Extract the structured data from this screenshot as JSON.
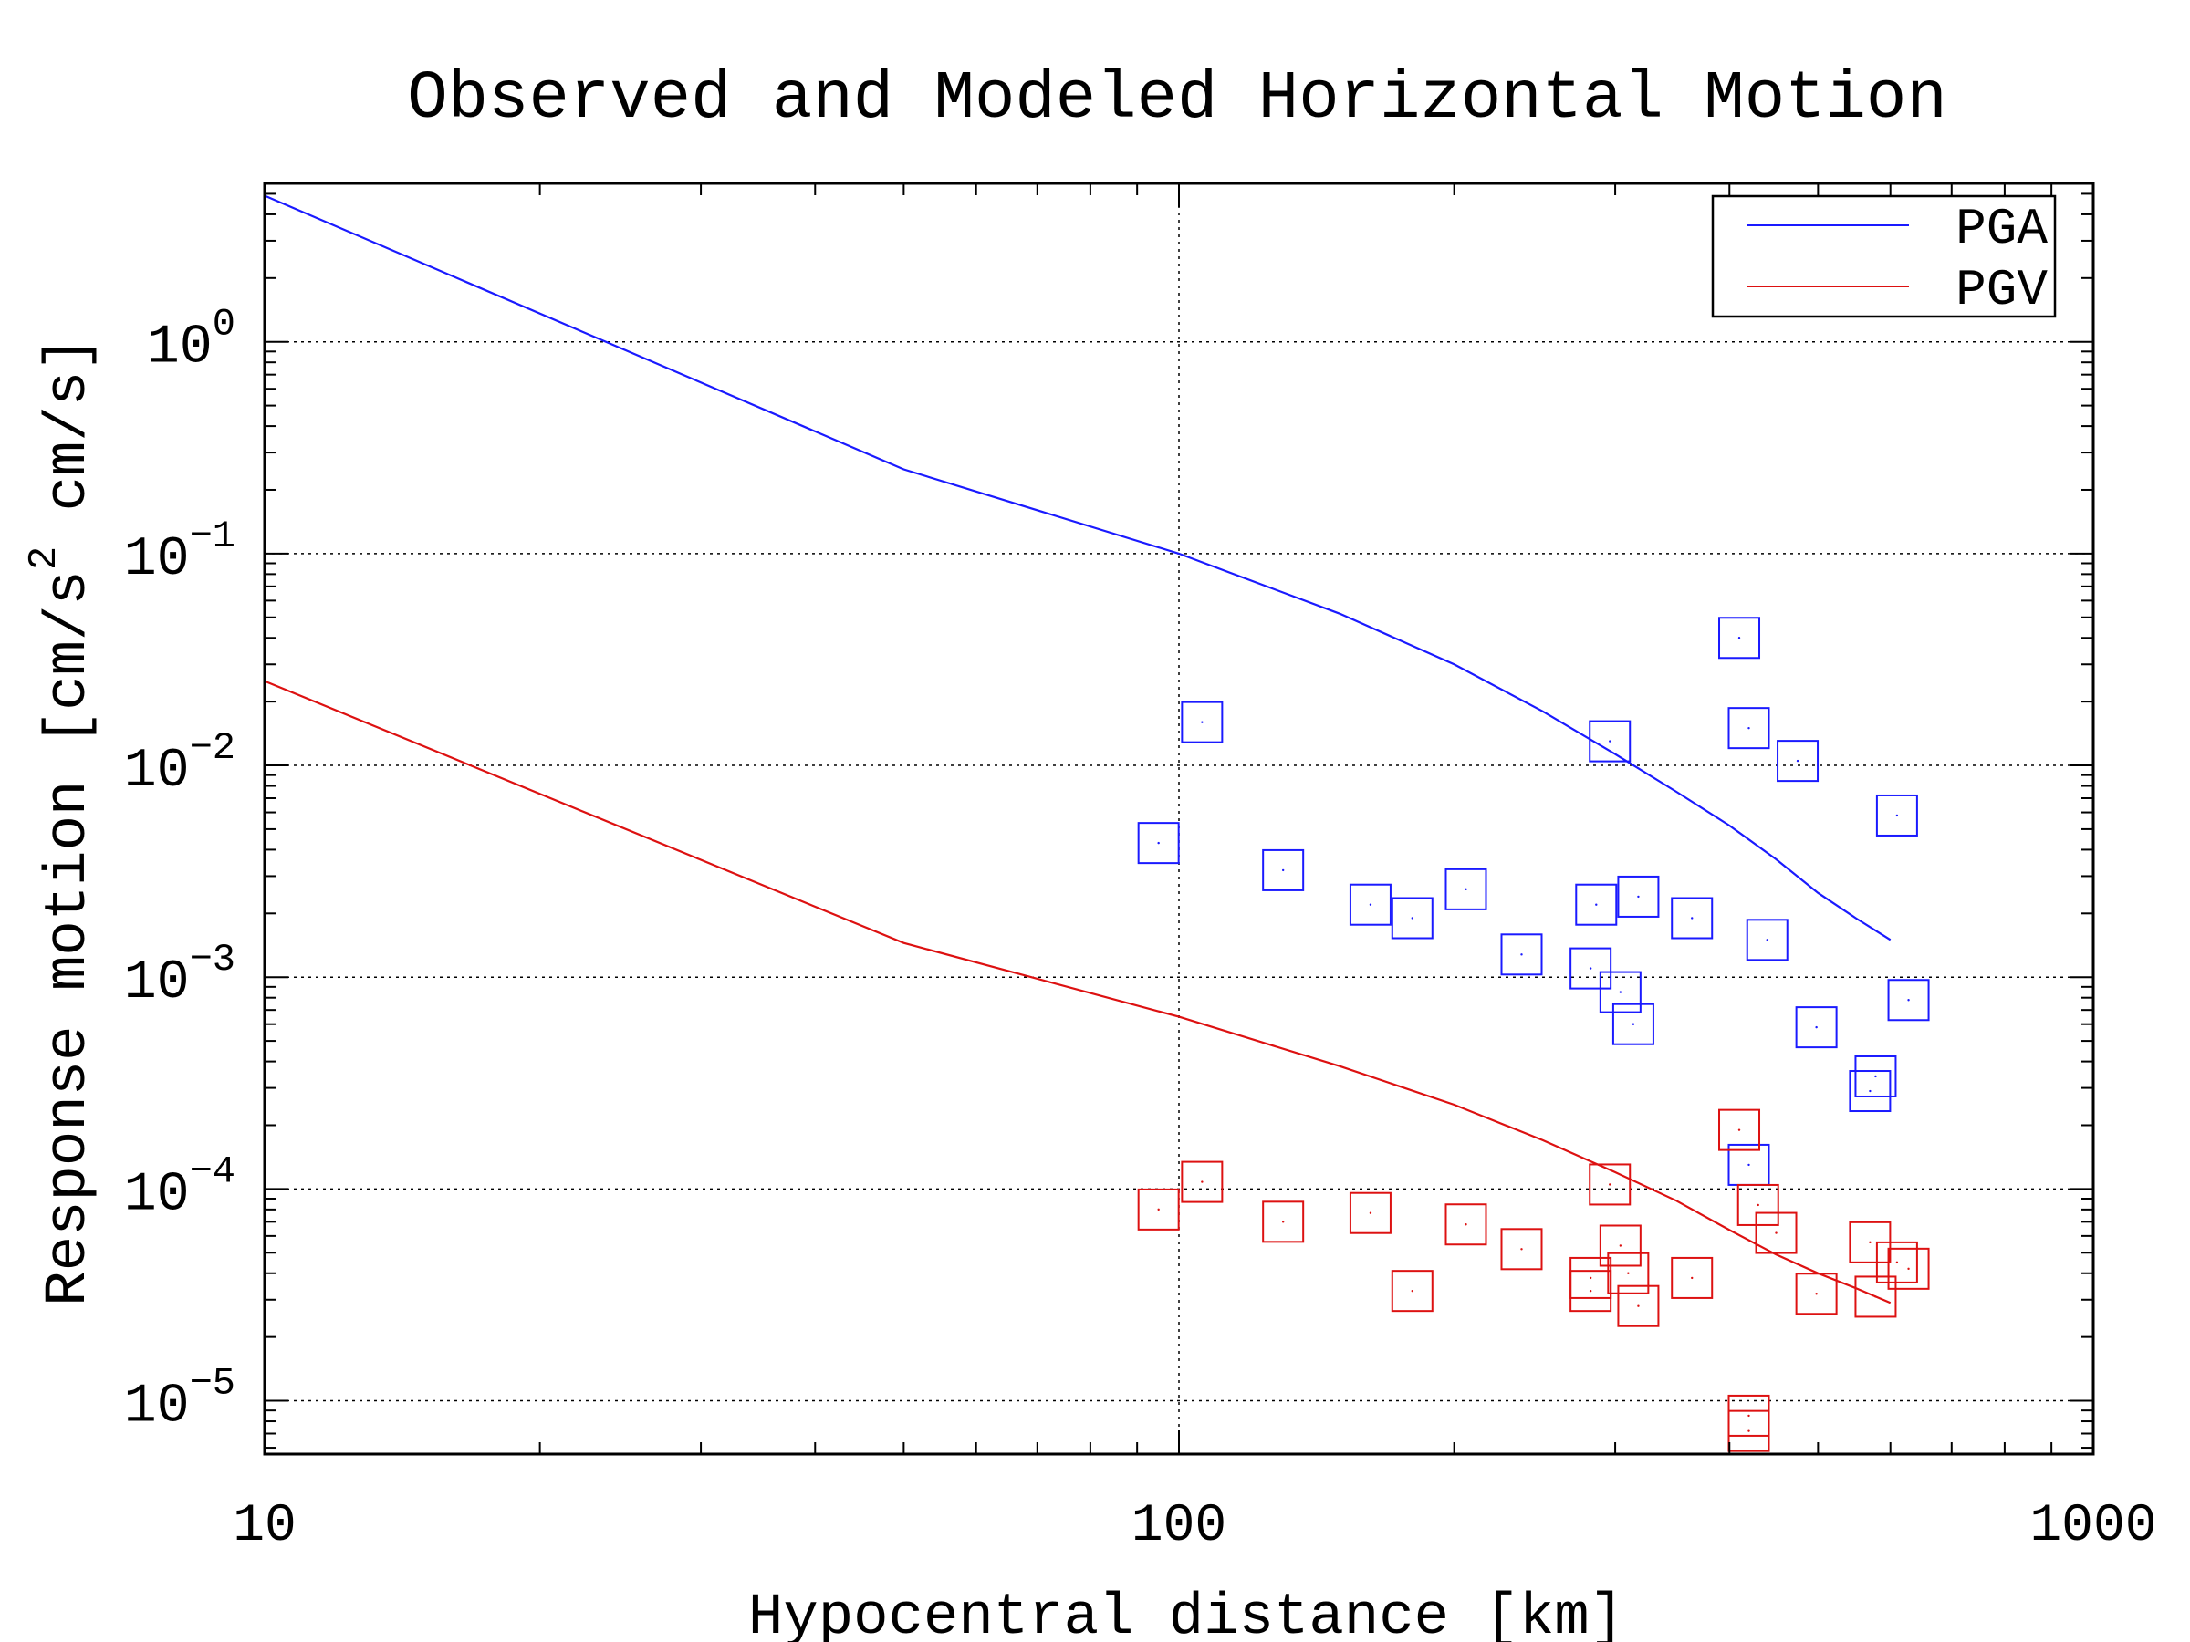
{
  "chart_data": {
    "type": "scatter",
    "title": "Observed and Modeled Horizontal Motion",
    "xlabel": "Hypocentral distance [km]",
    "ylabel_parts": [
      "Response motion  [cm/s",
      "2",
      "  cm/s]"
    ],
    "x_scale": "log",
    "y_scale": "log",
    "xlim": [
      10,
      1000
    ],
    "ylim": [
      5.6e-06,
      5.6
    ],
    "x_ticks": [
      {
        "value": 10,
        "label": "10"
      },
      {
        "value": 100,
        "label": "100"
      },
      {
        "value": 1000,
        "label": "1000"
      }
    ],
    "y_ticks": [
      {
        "value": 1,
        "base": "10",
        "exp": "0"
      },
      {
        "value": 0.1,
        "base": "10",
        "exp": "−1"
      },
      {
        "value": 0.01,
        "base": "10",
        "exp": "−2"
      },
      {
        "value": 0.001,
        "base": "10",
        "exp": "−3"
      },
      {
        "value": 0.0001,
        "base": "10",
        "exp": "−4"
      },
      {
        "value": 1e-05,
        "base": "10",
        "exp": "−5"
      }
    ],
    "grid": true,
    "legend_position": "top-right",
    "series": [
      {
        "name": "PGA",
        "color": "#1a1aff",
        "kind": "line",
        "x": [
          10,
          50,
          100,
          150,
          200,
          250,
          300,
          350,
          400,
          450,
          500,
          550,
          600
        ],
        "y": [
          4.9,
          0.25,
          0.1,
          0.052,
          0.03,
          0.018,
          0.0113,
          0.0075,
          0.0052,
          0.0036,
          0.0025,
          0.0019,
          0.0015
        ]
      },
      {
        "name": "PGV",
        "color": "#dd1111",
        "kind": "line",
        "x": [
          10,
          50,
          100,
          150,
          200,
          250,
          300,
          350,
          400,
          450,
          500,
          550,
          600
        ],
        "y": [
          0.025,
          0.00145,
          0.00065,
          0.00038,
          0.00025,
          0.00017,
          0.00012,
          8.8e-05,
          6.4e-05,
          4.9e-05,
          4e-05,
          3.4e-05,
          2.9e-05
        ]
      },
      {
        "name": "",
        "color": "#1a1aff",
        "kind": "points",
        "x": [
          95,
          106,
          130,
          162,
          180,
          206,
          237,
          282,
          286,
          296,
          304,
          314,
          318,
          364,
          410,
          420,
          420,
          440,
          475,
          498,
          570,
          578,
          610,
          628
        ],
        "y": [
          0.0043,
          0.016,
          0.0032,
          0.0022,
          0.0019,
          0.0026,
          0.00128,
          0.0011,
          0.0022,
          0.013,
          0.00085,
          0.0006,
          0.0024,
          0.0019,
          0.04,
          0.015,
          0.00013,
          0.0015,
          0.0105,
          0.00058,
          0.00029,
          0.00034,
          0.0058,
          0.00078
        ]
      },
      {
        "name": "",
        "color": "#dd1111",
        "kind": "points",
        "x": [
          95,
          106,
          130,
          162,
          180,
          206,
          237,
          282,
          282,
          296,
          304,
          310,
          318,
          364,
          410,
          420,
          420,
          430,
          450,
          498,
          570,
          578,
          610,
          628
        ],
        "y": [
          8e-05,
          0.000108,
          7e-05,
          7.7e-05,
          3.3e-05,
          6.8e-05,
          5.2e-05,
          3.8e-05,
          3.3e-05,
          0.000105,
          5.4e-05,
          4e-05,
          2.8e-05,
          3.8e-05,
          0.00019,
          8.5e-06,
          7.2e-06,
          8.4e-05,
          6.2e-05,
          3.2e-05,
          5.6e-05,
          3.1e-05,
          4.5e-05,
          4.2e-05
        ]
      }
    ]
  }
}
